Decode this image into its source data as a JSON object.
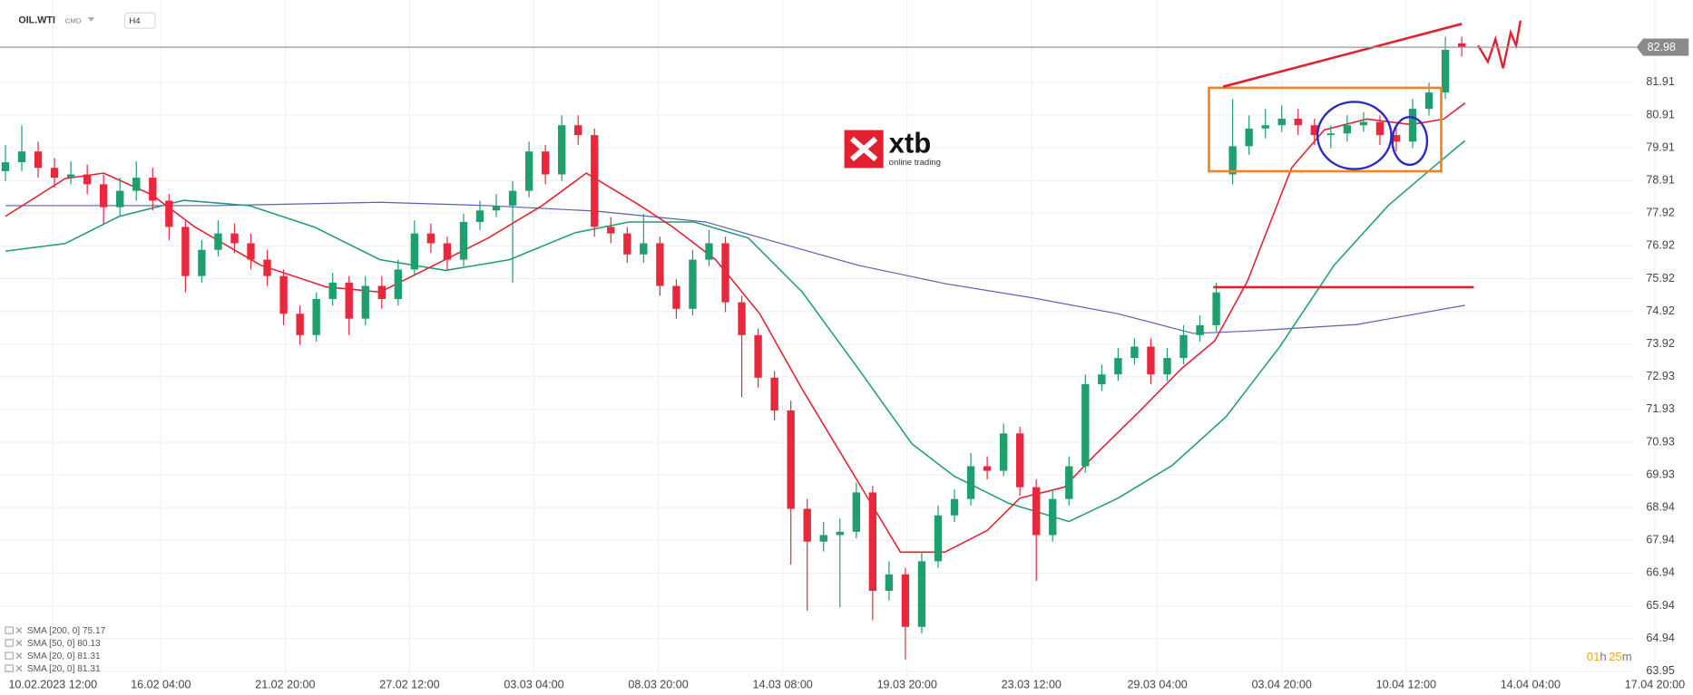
{
  "chart_data": {
    "type": "candlestick",
    "symbol": "OIL.WTI",
    "market": "CMD",
    "interval": "H4",
    "logo": {
      "brand": "xtb",
      "tagline": "online trading"
    },
    "countdown": [
      "01",
      "h",
      "25",
      "m"
    ],
    "up_color": "#1f9e6e",
    "down_color": "#e8283c",
    "grid": true,
    "xlim": [
      0,
      103
    ],
    "ylim": [
      63.79,
      84.42
    ],
    "xticks": [
      {
        "value": 2.9,
        "label": "10.02.2023 12:00"
      },
      {
        "value": 9.5,
        "label": "16.02 04:00"
      },
      {
        "value": 17.1,
        "label": "21.02 20:00"
      },
      {
        "value": 24.7,
        "label": "27.02 12:00"
      },
      {
        "value": 32.3,
        "label": "03.03 04:00"
      },
      {
        "value": 39.9,
        "label": "08.03 20:00"
      },
      {
        "value": 47.5,
        "label": "14.03 08:00"
      },
      {
        "value": 55.1,
        "label": "19.03 20:00"
      },
      {
        "value": 62.7,
        "label": "23.03 12:00"
      },
      {
        "value": 70.4,
        "label": "29.03 04:00"
      },
      {
        "value": 78.0,
        "label": "03.04 20:00"
      },
      {
        "value": 85.6,
        "label": "10.04 12:00"
      },
      {
        "value": 93.2,
        "label": "14.04 04:00"
      },
      {
        "value": 100.8,
        "label": "17.04 20:00"
      }
    ],
    "yticks": [
      81.91,
      80.91,
      79.91,
      78.91,
      77.92,
      76.92,
      75.92,
      74.92,
      73.92,
      72.93,
      71.93,
      70.93,
      69.93,
      68.94,
      67.94,
      66.94,
      65.94,
      64.94,
      63.95
    ],
    "ohlc": [
      [
        79.2,
        80.0,
        78.9,
        79.47
      ],
      [
        79.47,
        80.6,
        79.2,
        79.8
      ],
      [
        79.8,
        80.1,
        79.0,
        79.3
      ],
      [
        79.3,
        79.6,
        78.7,
        79.0
      ],
      [
        79.0,
        79.5,
        78.8,
        79.1
      ],
      [
        79.1,
        79.4,
        78.5,
        78.8
      ],
      [
        78.8,
        79.1,
        77.6,
        78.1
      ],
      [
        78.1,
        79.0,
        77.8,
        78.6
      ],
      [
        78.6,
        79.5,
        78.3,
        79.0
      ],
      [
        79.0,
        79.3,
        78.0,
        78.3
      ],
      [
        78.3,
        78.5,
        77.1,
        77.5
      ],
      [
        77.5,
        77.7,
        75.5,
        76.0
      ],
      [
        76.0,
        77.1,
        75.8,
        76.8
      ],
      [
        76.8,
        77.7,
        76.6,
        77.3
      ],
      [
        77.3,
        77.6,
        76.7,
        77.0
      ],
      [
        77.0,
        77.3,
        76.2,
        76.5
      ],
      [
        76.5,
        76.8,
        75.7,
        76.0
      ],
      [
        76.0,
        76.2,
        74.5,
        74.85
      ],
      [
        74.85,
        75.1,
        73.9,
        74.2
      ],
      [
        74.2,
        75.5,
        74.0,
        75.3
      ],
      [
        75.3,
        76.1,
        75.1,
        75.8
      ],
      [
        75.8,
        76.0,
        74.2,
        74.7
      ],
      [
        74.7,
        76.0,
        74.5,
        75.7
      ],
      [
        75.7,
        76.0,
        75.0,
        75.3
      ],
      [
        75.3,
        76.5,
        75.1,
        76.2
      ],
      [
        76.2,
        77.7,
        76.0,
        77.3
      ],
      [
        77.3,
        77.6,
        76.7,
        77.0
      ],
      [
        77.0,
        77.2,
        76.2,
        76.5
      ],
      [
        76.5,
        77.9,
        76.3,
        77.65
      ],
      [
        77.65,
        78.3,
        77.4,
        78.0
      ],
      [
        78.0,
        78.5,
        77.8,
        78.15
      ],
      [
        78.15,
        78.9,
        75.8,
        78.6
      ],
      [
        78.6,
        80.1,
        78.4,
        79.8
      ],
      [
        79.8,
        80.0,
        78.8,
        79.1
      ],
      [
        79.1,
        80.9,
        78.9,
        80.6
      ],
      [
        80.6,
        80.9,
        80.0,
        80.3
      ],
      [
        80.3,
        80.5,
        77.2,
        77.5
      ],
      [
        77.5,
        77.8,
        77.0,
        77.3
      ],
      [
        77.3,
        77.5,
        76.4,
        76.66
      ],
      [
        76.66,
        77.9,
        76.4,
        77.0
      ],
      [
        77.0,
        77.2,
        75.4,
        75.7
      ],
      [
        75.7,
        75.9,
        74.7,
        75.0
      ],
      [
        75.0,
        76.8,
        74.8,
        76.5
      ],
      [
        76.5,
        77.4,
        76.3,
        77.0
      ],
      [
        77.0,
        77.2,
        74.9,
        75.2
      ],
      [
        75.2,
        75.4,
        72.3,
        74.2
      ],
      [
        74.2,
        74.4,
        72.6,
        72.9
      ],
      [
        72.9,
        73.1,
        71.6,
        71.9
      ],
      [
        71.9,
        72.2,
        67.2,
        68.9
      ],
      [
        68.9,
        69.2,
        65.8,
        67.9
      ],
      [
        67.9,
        68.5,
        67.6,
        68.1
      ],
      [
        68.1,
        68.6,
        65.9,
        68.2
      ],
      [
        68.2,
        69.7,
        68.0,
        69.4
      ],
      [
        69.4,
        69.6,
        65.5,
        66.4
      ],
      [
        66.4,
        67.3,
        66.1,
        66.9
      ],
      [
        66.9,
        67.1,
        64.3,
        65.3
      ],
      [
        65.3,
        67.6,
        65.1,
        67.3
      ],
      [
        67.3,
        69.0,
        67.1,
        68.7
      ],
      [
        68.7,
        69.5,
        68.5,
        69.2
      ],
      [
        69.2,
        70.6,
        69.0,
        70.2
      ],
      [
        70.2,
        70.5,
        69.8,
        70.06
      ],
      [
        70.06,
        71.5,
        69.9,
        71.2
      ],
      [
        71.2,
        71.4,
        69.3,
        69.56
      ],
      [
        69.56,
        69.8,
        66.7,
        68.1
      ],
      [
        68.1,
        69.5,
        67.9,
        69.2
      ],
      [
        69.2,
        70.5,
        69.0,
        70.2
      ],
      [
        70.2,
        73.0,
        70.0,
        72.7
      ],
      [
        72.7,
        73.3,
        72.5,
        73.0
      ],
      [
        73.0,
        73.8,
        72.8,
        73.5
      ],
      [
        73.5,
        74.1,
        73.3,
        73.85
      ],
      [
        73.85,
        74.1,
        72.7,
        73.0
      ],
      [
        73.0,
        73.8,
        72.8,
        73.5
      ],
      [
        73.5,
        74.5,
        73.3,
        74.2
      ],
      [
        74.2,
        74.8,
        74.0,
        74.5
      ],
      [
        74.5,
        75.8,
        74.3,
        75.5
      ],
      [
        79.1,
        81.4,
        78.8,
        79.96
      ],
      [
        79.96,
        80.9,
        79.7,
        80.5
      ],
      [
        80.5,
        81.1,
        80.2,
        80.6
      ],
      [
        80.6,
        81.2,
        80.4,
        80.8
      ],
      [
        80.8,
        81.1,
        80.3,
        80.6
      ],
      [
        80.6,
        80.8,
        80.0,
        80.3
      ],
      [
        80.3,
        80.6,
        79.9,
        80.35
      ],
      [
        80.35,
        80.9,
        80.1,
        80.6
      ],
      [
        80.6,
        81.0,
        80.4,
        80.7
      ],
      [
        80.7,
        80.9,
        80.0,
        80.3
      ],
      [
        80.3,
        80.6,
        79.8,
        80.1
      ],
      [
        80.1,
        81.4,
        79.9,
        81.1
      ],
      [
        81.1,
        81.9,
        80.9,
        81.6
      ],
      [
        81.6,
        83.3,
        81.4,
        82.9
      ],
      [
        83.1,
        83.3,
        82.7,
        82.98
      ]
    ],
    "series": [
      {
        "name": "SMA [200, 0] 75.17",
        "color": "#5b5fb5",
        "x": [
          0,
          12.9,
          22.9,
          29.5,
          36.1,
          42.8,
          47.4,
          52.1,
          57.4,
          62.7,
          68.0,
          72.6,
          75.9,
          82.6,
          89.2
        ],
        "values": [
          78.15,
          78.15,
          78.25,
          78.15,
          77.98,
          77.65,
          76.99,
          76.33,
          75.77,
          75.34,
          74.85,
          74.25,
          74.32,
          74.52,
          75.11
        ]
      },
      {
        "name": "SMA [50, 0] 80.13",
        "color": "#1f9e76",
        "x": [
          0,
          3.65,
          6.96,
          10.9,
          14.9,
          18.9,
          22.9,
          26.9,
          30.8,
          34.8,
          38.1,
          42.1,
          45.4,
          48.7,
          52.1,
          55.4,
          58.0,
          61.3,
          65.0,
          68.0,
          71.3,
          74.6,
          77.9,
          81.2,
          84.5,
          87.2,
          89.2
        ],
        "values": [
          76.76,
          76.99,
          77.82,
          78.31,
          78.15,
          77.49,
          76.5,
          76.17,
          76.5,
          77.32,
          77.65,
          77.65,
          77.16,
          75.51,
          73.19,
          70.88,
          69.89,
          69.07,
          68.51,
          69.23,
          70.22,
          71.71,
          73.86,
          76.33,
          78.15,
          79.3,
          80.13
        ]
      },
      {
        "name": "SMA [20, 0] 81.31",
        "color": "#e3202f",
        "x": [
          0,
          3.65,
          6.0,
          8.95,
          11.6,
          15.6,
          19.6,
          22.9,
          26.2,
          29.5,
          32.8,
          35.5,
          38.8,
          40.8,
          43.4,
          46.1,
          48.7,
          52.1,
          54.7,
          57.4,
          60.0,
          62.0,
          64.7,
          66.6,
          69.3,
          71.9,
          73.9,
          75.9,
          78.6,
          80.6,
          83.2,
          85.9,
          87.9,
          89.2
        ],
        "values": [
          77.82,
          78.97,
          79.14,
          78.48,
          77.49,
          76.33,
          75.67,
          75.51,
          76.33,
          77.16,
          78.15,
          79.14,
          78.15,
          77.49,
          76.5,
          74.85,
          72.54,
          69.73,
          67.58,
          67.58,
          68.24,
          69.23,
          69.56,
          70.55,
          71.87,
          73.19,
          74.02,
          75.84,
          79.3,
          80.46,
          80.79,
          80.62,
          80.79,
          81.28
        ]
      }
    ],
    "extra_legend": [
      "SMA [20, 0] 81.31"
    ]
  }
}
